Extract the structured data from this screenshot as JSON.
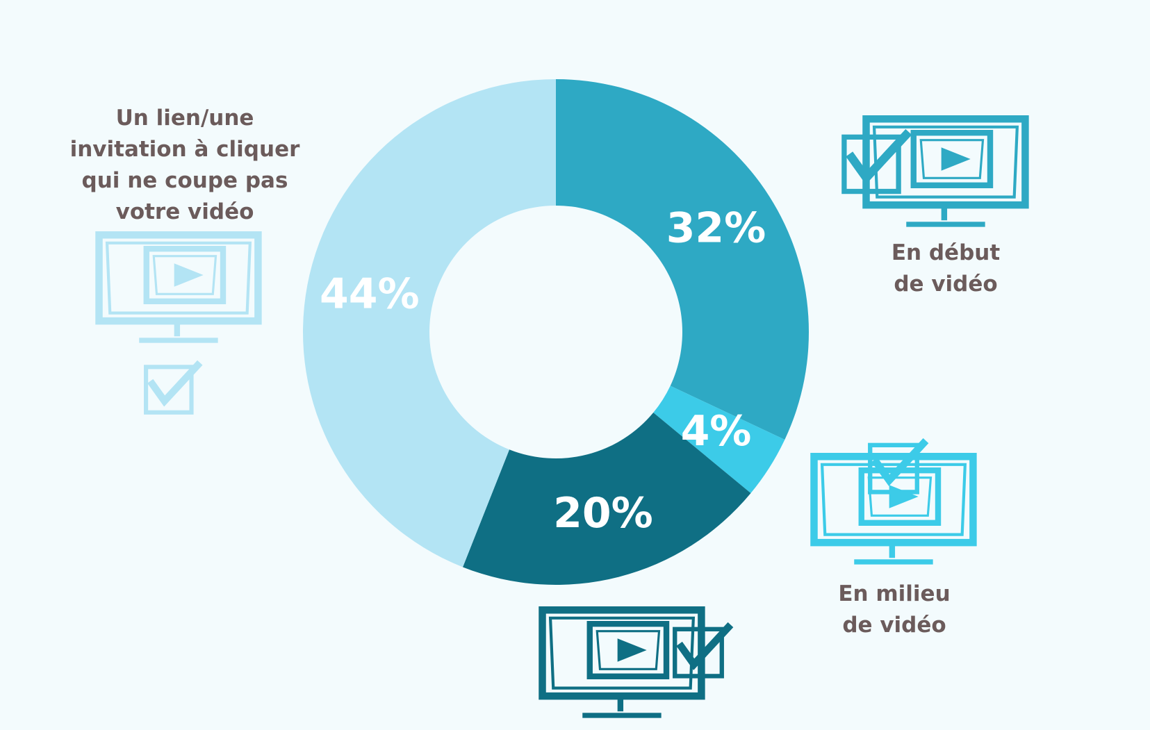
{
  "chart_data": {
    "type": "donut",
    "categories": [
      "En début de vidéo",
      "En milieu de vidéo",
      null,
      "Un lien/une invitation à cliquer qui ne coupe pas votre vidéo"
    ],
    "values": [
      32,
      4,
      20,
      44
    ],
    "value_labels": [
      "32%",
      "4%",
      "20%",
      "44%"
    ],
    "colors": [
      "#2ea9c4",
      "#3ccbe8",
      "#0f6f84",
      "#b3e4f4"
    ]
  }
}
